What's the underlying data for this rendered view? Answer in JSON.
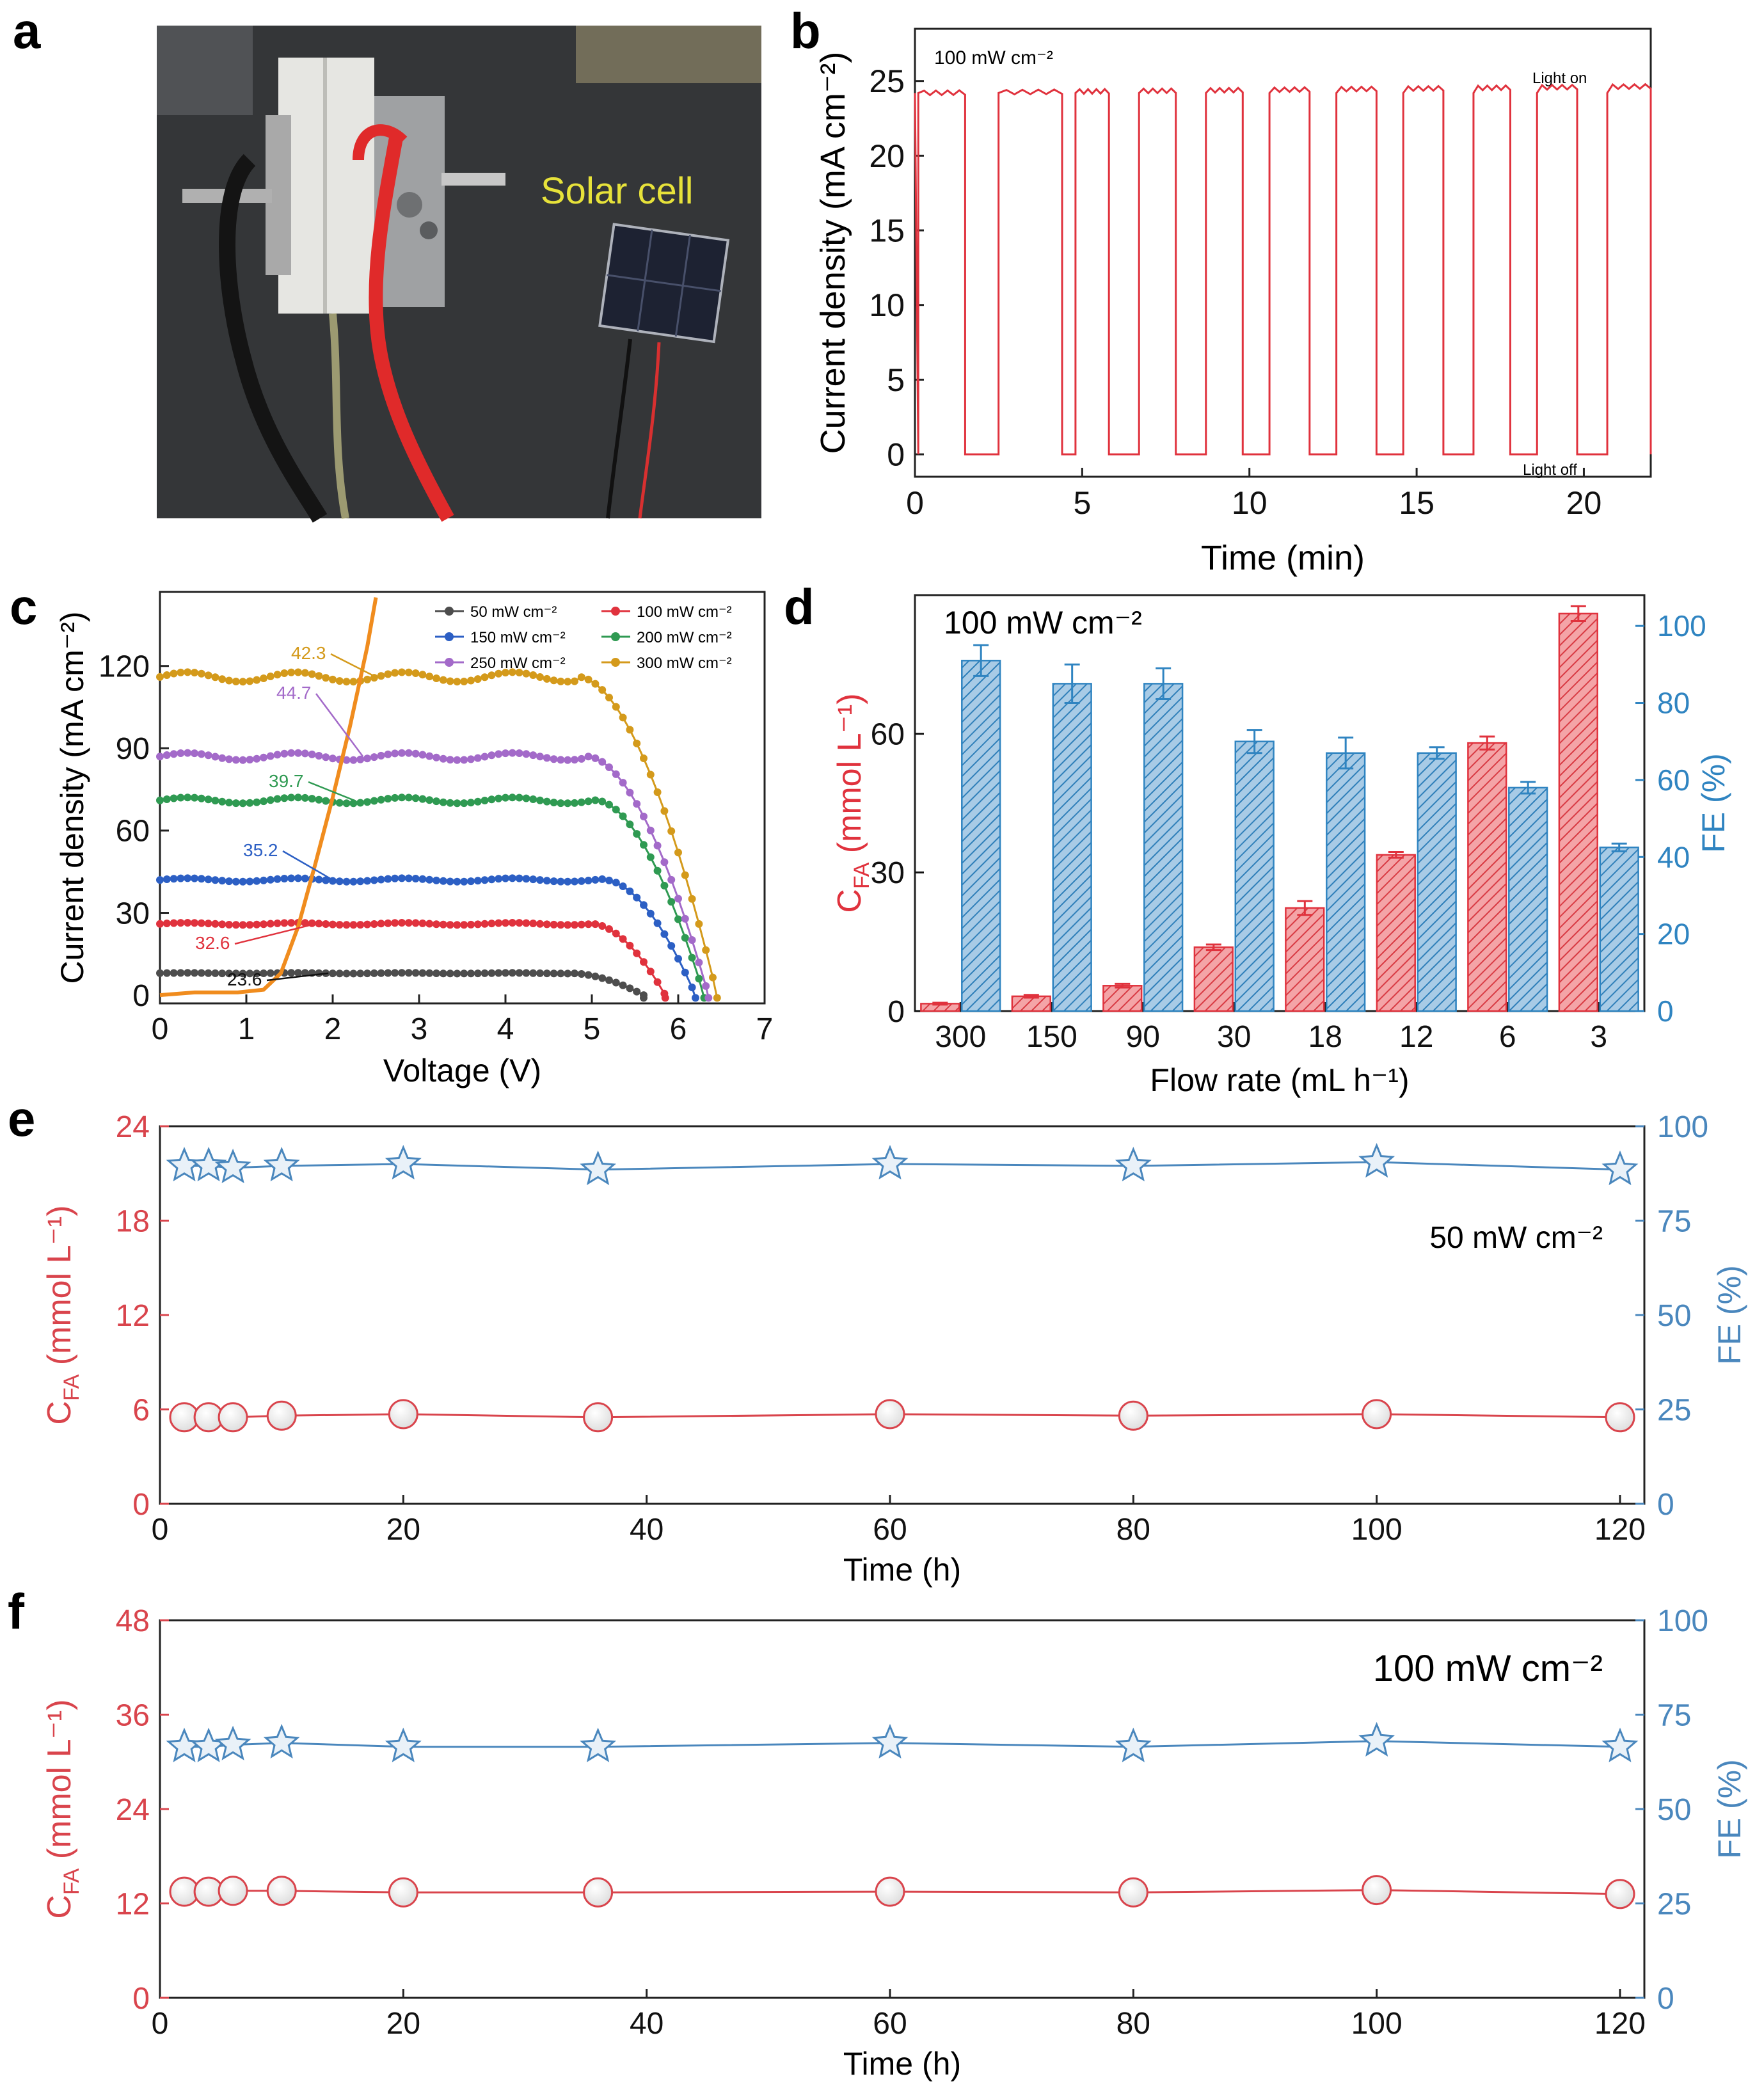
{
  "panel_letters": {
    "a": "a",
    "b": "b",
    "c": "c",
    "d": "d",
    "e": "e",
    "f": "f"
  },
  "photo": {
    "label": "Solar cell"
  },
  "chart_data": [
    {
      "id": "b",
      "type": "line",
      "title": "100 mW cm⁻²",
      "xlabel": "Time (min)",
      "ylabel": "Current density (mA cm⁻²)",
      "xlim": [
        0,
        22
      ],
      "ylim": [
        -1.5,
        28.5
      ],
      "xticks": [
        0,
        5,
        10,
        15,
        20
      ],
      "yticks": [
        0,
        5,
        10,
        15,
        20,
        25
      ],
      "annotations": [
        "Light on",
        "Light off"
      ],
      "color": "#e0323d",
      "on_intervals": [
        [
          0.1,
          1.5
        ],
        [
          2.5,
          4.4
        ],
        [
          4.8,
          5.8
        ],
        [
          6.7,
          7.8
        ],
        [
          8.7,
          9.8
        ],
        [
          10.6,
          11.8
        ],
        [
          12.6,
          13.8
        ],
        [
          14.6,
          15.8
        ],
        [
          16.7,
          17.8
        ],
        [
          18.6,
          19.8
        ],
        [
          20.7,
          22.0
        ]
      ],
      "on_value": 24.2,
      "off_value": 0
    },
    {
      "id": "c",
      "type": "line",
      "xlabel": "Voltage (V)",
      "ylabel": "Current density (mA cm⁻²)",
      "xlim": [
        0,
        7
      ],
      "ylim": [
        -3,
        147
      ],
      "xticks": [
        0,
        1,
        2,
        3,
        4,
        5,
        6,
        7
      ],
      "yticks": [
        0,
        30,
        60,
        90,
        120
      ],
      "series": [
        {
          "name": "50 mW cm⁻²",
          "color": "#4d4d4d",
          "jsc": 8,
          "knee": 4.75,
          "voc": 5.6,
          "point_label": "23.6"
        },
        {
          "name": "100 mW cm⁻²",
          "color": "#e0323d",
          "jsc": 26,
          "knee": 5.0,
          "voc": 5.85,
          "point_label": "32.6"
        },
        {
          "name": "150 mW cm⁻²",
          "color": "#2c5fc4",
          "jsc": 42,
          "knee": 5.15,
          "voc": 6.2,
          "point_label": "35.2"
        },
        {
          "name": "200 mW cm⁻²",
          "color": "#2f9a52",
          "jsc": 71,
          "knee": 5.05,
          "voc": 6.3,
          "point_label": "39.7"
        },
        {
          "name": "250 mW cm⁻²",
          "color": "#a36ac9",
          "jsc": 87,
          "knee": 4.95,
          "voc": 6.35,
          "point_label": "44.7"
        },
        {
          "name": "300 mW cm⁻²",
          "color": "#d49a1b",
          "jsc": 116,
          "knee": 4.85,
          "voc": 6.45,
          "point_label": "42.3"
        }
      ],
      "load_curve": {
        "color": "#f08c1e",
        "x": [
          0,
          0.4,
          0.9,
          1.2,
          1.4,
          1.6,
          1.8,
          2.0,
          2.2,
          2.4,
          2.5
        ],
        "y": [
          0,
          1,
          1,
          2,
          8,
          25,
          48,
          72,
          98,
          127,
          145
        ]
      }
    },
    {
      "id": "d",
      "type": "bar",
      "title": "100 mW cm⁻²",
      "xlabel": "Flow rate (mL h⁻¹)",
      "ylabel": "C_FA (mmol L⁻¹)",
      "y2label": "FE (%)",
      "categories": [
        "300",
        "150",
        "90",
        "30",
        "18",
        "12",
        "6",
        "3"
      ],
      "ylim": [
        0,
        90
      ],
      "y2lim": [
        0,
        108
      ],
      "yticks": [
        0,
        30,
        60
      ],
      "y2ticks": [
        0,
        20,
        40,
        60,
        80,
        100
      ],
      "series": [
        {
          "name": "C_FA",
          "axis": "left",
          "color": "#e0323d",
          "values": [
            1.6,
            3.2,
            5.5,
            13.8,
            22.3,
            33.8,
            58,
            86
          ],
          "errors": [
            0.2,
            0.3,
            0.4,
            0.6,
            1.5,
            0.6,
            1.4,
            1.6
          ]
        },
        {
          "name": "FE",
          "axis": "right",
          "color": "#2f84c1",
          "values": [
            91,
            85,
            85,
            70,
            67,
            67,
            58,
            42.5
          ],
          "errors": [
            4,
            5,
            4,
            3,
            4,
            1.5,
            1.5,
            1
          ]
        }
      ]
    },
    {
      "id": "e",
      "type": "scatter",
      "title": "50 mW cm⁻²",
      "xlabel": "Time (h)",
      "ylabel": "C_FA (mmol L⁻¹)",
      "y2label": "FE (%)",
      "xlim": [
        0,
        122
      ],
      "ylim": [
        0,
        24
      ],
      "y2lim": [
        0,
        100
      ],
      "xticks": [
        0,
        20,
        40,
        60,
        80,
        100,
        120
      ],
      "yticks": [
        0,
        6,
        12,
        18,
        24
      ],
      "y2ticks": [
        0,
        25,
        50,
        75,
        100
      ],
      "x": [
        2,
        4,
        6,
        10,
        20,
        36,
        60,
        80,
        100,
        120
      ],
      "series": [
        {
          "name": "C_FA",
          "axis": "left",
          "marker": "circle",
          "color": "#d9444c",
          "values": [
            5.5,
            5.5,
            5.5,
            5.6,
            5.7,
            5.5,
            5.7,
            5.6,
            5.7,
            5.5
          ]
        },
        {
          "name": "FE",
          "axis": "right",
          "marker": "star",
          "color": "#4a87bd",
          "values": [
            89.5,
            89.5,
            89,
            89.5,
            90,
            88.5,
            90,
            89.5,
            90.5,
            88.5
          ]
        }
      ]
    },
    {
      "id": "f",
      "type": "scatter",
      "title": "100 mW cm⁻²",
      "xlabel": "Time (h)",
      "ylabel": "C_FA (mmol L⁻¹)",
      "y2label": "FE (%)",
      "xlim": [
        0,
        122
      ],
      "ylim": [
        0,
        48
      ],
      "y2lim": [
        0,
        100
      ],
      "xticks": [
        0,
        20,
        40,
        60,
        80,
        100,
        120
      ],
      "yticks": [
        0,
        12,
        24,
        36,
        48
      ],
      "y2ticks": [
        0,
        25,
        50,
        75,
        100
      ],
      "x": [
        2,
        4,
        6,
        10,
        20,
        36,
        60,
        80,
        100,
        120
      ],
      "series": [
        {
          "name": "C_FA",
          "axis": "left",
          "marker": "circle",
          "color": "#d9444c",
          "values": [
            13.5,
            13.5,
            13.6,
            13.6,
            13.4,
            13.4,
            13.5,
            13.4,
            13.7,
            13.2
          ]
        },
        {
          "name": "FE",
          "axis": "right",
          "marker": "star",
          "color": "#4a87bd",
          "values": [
            66.5,
            66.5,
            67,
            67.5,
            66.5,
            66.5,
            67.5,
            66.5,
            68,
            66.5
          ]
        }
      ]
    }
  ]
}
